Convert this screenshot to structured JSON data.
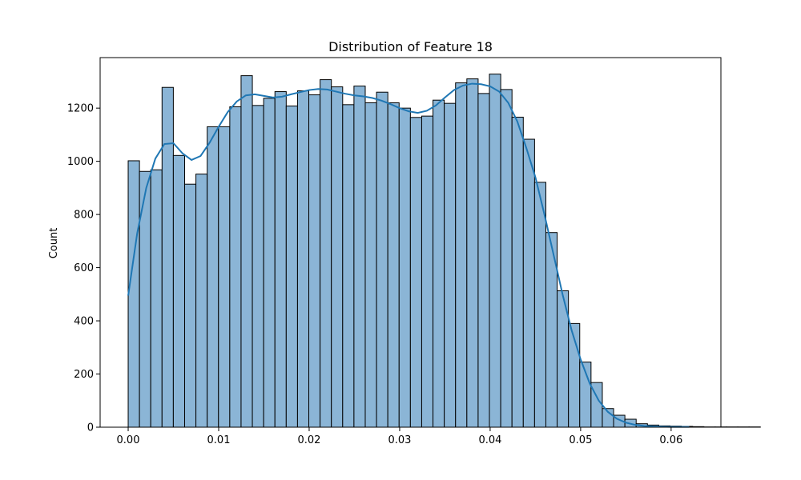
{
  "chart_data": {
    "type": "bar",
    "title": "Distribution of Feature 18",
    "xlabel": "",
    "ylabel": "Count",
    "xlim": [
      -0.0031,
      0.0655
    ],
    "ylim": [
      0,
      1390
    ],
    "grid": false,
    "bin_start": 0.0,
    "bin_width": 0.0012475,
    "counts": [
      1002,
      962,
      968,
      1278,
      1022,
      914,
      952,
      1130,
      1130,
      1205,
      1322,
      1210,
      1237,
      1262,
      1208,
      1265,
      1250,
      1307,
      1280,
      1213,
      1283,
      1220,
      1260,
      1220,
      1200,
      1165,
      1170,
      1230,
      1218,
      1295,
      1310,
      1255,
      1328,
      1270,
      1166,
      1083,
      921,
      732,
      513,
      390,
      245,
      168,
      70,
      45,
      30,
      13,
      8,
      5,
      4,
      3,
      2,
      1,
      1,
      1,
      1,
      1
    ],
    "kde": {
      "x": [
        0.0,
        0.001,
        0.002,
        0.003,
        0.004,
        0.005,
        0.006,
        0.007,
        0.008,
        0.009,
        0.01,
        0.011,
        0.012,
        0.013,
        0.014,
        0.015,
        0.016,
        0.017,
        0.018,
        0.019,
        0.02,
        0.021,
        0.022,
        0.023,
        0.024,
        0.025,
        0.026,
        0.027,
        0.028,
        0.029,
        0.03,
        0.031,
        0.032,
        0.033,
        0.034,
        0.035,
        0.036,
        0.037,
        0.038,
        0.039,
        0.04,
        0.041,
        0.042,
        0.043,
        0.044,
        0.045,
        0.046,
        0.047,
        0.048,
        0.049,
        0.05,
        0.051,
        0.052,
        0.053,
        0.054,
        0.055,
        0.056,
        0.057,
        0.058,
        0.059,
        0.06,
        0.061,
        0.062
      ],
      "y": [
        495,
        730,
        900,
        1010,
        1065,
        1068,
        1030,
        1005,
        1020,
        1070,
        1130,
        1185,
        1225,
        1248,
        1252,
        1246,
        1240,
        1243,
        1252,
        1260,
        1268,
        1272,
        1270,
        1262,
        1254,
        1248,
        1244,
        1238,
        1228,
        1215,
        1200,
        1188,
        1182,
        1190,
        1210,
        1240,
        1268,
        1285,
        1292,
        1290,
        1282,
        1262,
        1220,
        1150,
        1050,
        940,
        800,
        650,
        500,
        365,
        255,
        165,
        100,
        58,
        32,
        17,
        9,
        5,
        3,
        2,
        1,
        1,
        1
      ]
    },
    "xticks": [
      0.0,
      0.01,
      0.02,
      0.03,
      0.04,
      0.05,
      0.06
    ],
    "xtick_labels": [
      "0.00",
      "0.01",
      "0.02",
      "0.03",
      "0.04",
      "0.05",
      "0.06"
    ],
    "yticks": [
      0,
      200,
      400,
      600,
      800,
      1000,
      1200
    ],
    "ytick_labels": [
      "0",
      "200",
      "400",
      "600",
      "800",
      "1000",
      "1200"
    ],
    "bar_color": "#8bb5d6",
    "bar_edge_color": "#000000",
    "kde_color": "#1f77b4"
  }
}
